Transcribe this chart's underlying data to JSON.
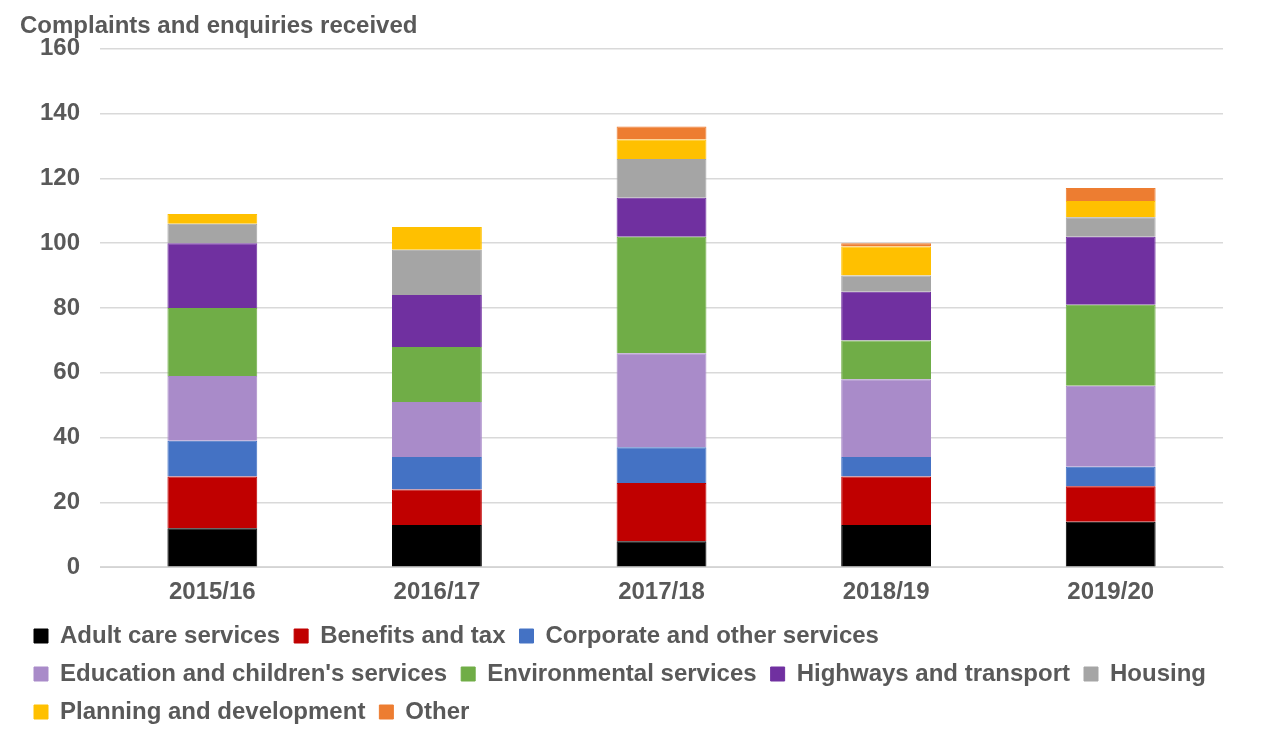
{
  "chart_data": {
    "type": "bar",
    "title": "Complaints and enquiries received",
    "stacked": true,
    "categories": [
      "2015/16",
      "2016/17",
      "2017/18",
      "2018/19",
      "2019/20"
    ],
    "series": [
      {
        "name": "Adult care services",
        "color": "#000000",
        "values": [
          12,
          13,
          8,
          13,
          14
        ]
      },
      {
        "name": "Benefits and tax",
        "color": "#c00000",
        "values": [
          16,
          11,
          18,
          15,
          11
        ]
      },
      {
        "name": "Corporate and other services",
        "color": "#4472c4",
        "values": [
          11,
          10,
          11,
          6,
          6
        ]
      },
      {
        "name": "Education and children's services",
        "color": "#a98bc9",
        "values": [
          20,
          17,
          29,
          24,
          25
        ]
      },
      {
        "name": "Environmental services",
        "color": "#70ad47",
        "values": [
          21,
          17,
          36,
          12,
          25
        ]
      },
      {
        "name": "Highways and transport",
        "color": "#7030a0",
        "values": [
          20,
          16,
          12,
          15,
          21
        ]
      },
      {
        "name": "Housing",
        "color": "#a5a5a5",
        "values": [
          6,
          14,
          12,
          5,
          6
        ]
      },
      {
        "name": "Planning and development",
        "color": "#ffc000",
        "values": [
          3,
          7,
          6,
          9,
          5
        ]
      },
      {
        "name": "Other",
        "color": "#ed7d31",
        "values": [
          0,
          0,
          4,
          1,
          4
        ]
      }
    ],
    "ylim": [
      0,
      160
    ],
    "yticks": [
      0,
      20,
      40,
      60,
      80,
      100,
      120,
      140,
      160
    ],
    "grid": "y",
    "legend": "bottom"
  }
}
